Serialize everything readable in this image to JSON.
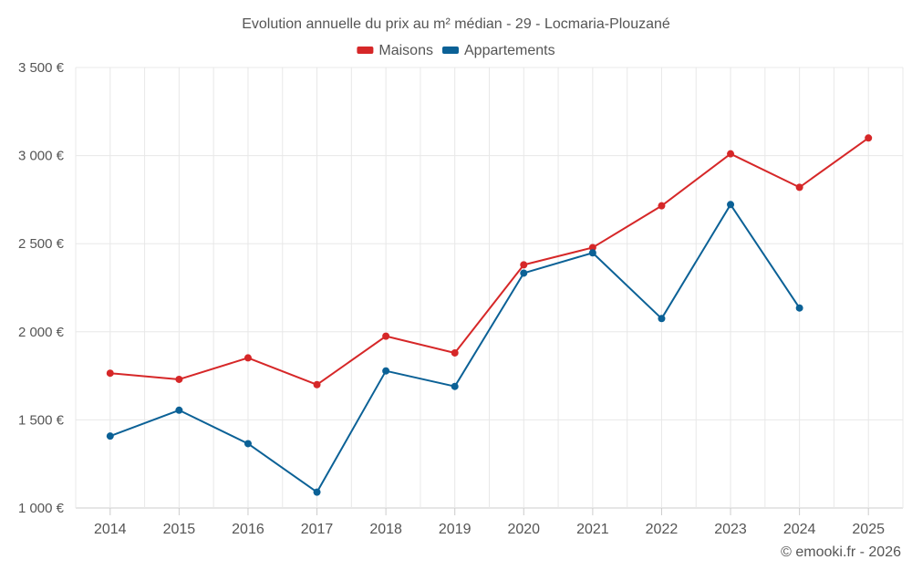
{
  "chart_data": {
    "type": "line",
    "title": "Evolution annuelle du prix au m² médian - 29 - Locmaria-Plouzané",
    "xlabel": "",
    "ylabel": "",
    "categories": [
      "2014",
      "2015",
      "2016",
      "2017",
      "2018",
      "2019",
      "2020",
      "2021",
      "2022",
      "2023",
      "2024",
      "2025"
    ],
    "ylim": [
      1000,
      3500
    ],
    "yticks": [
      1000,
      1500,
      2000,
      2500,
      3000,
      3500
    ],
    "ytick_labels": [
      "1 000 €",
      "1 500 €",
      "2 000 €",
      "2 500 €",
      "3 000 €",
      "3 500 €"
    ],
    "grid": true,
    "legend_position": "top-center",
    "series": [
      {
        "name": "Maisons",
        "color": "#d62728",
        "values": [
          1765,
          1730,
          1852,
          1700,
          1975,
          1880,
          2380,
          2478,
          2715,
          3010,
          2820,
          3100
        ]
      },
      {
        "name": "Appartements",
        "color": "#0b6196",
        "values": [
          1408,
          1555,
          1365,
          1090,
          1778,
          1690,
          2333,
          2448,
          2075,
          2722,
          2135,
          null
        ]
      }
    ]
  },
  "credit": "© emooki.fr - 2026"
}
